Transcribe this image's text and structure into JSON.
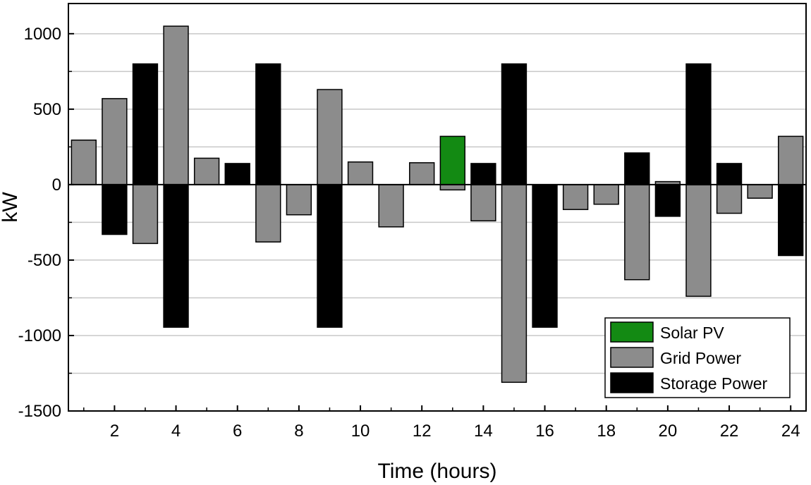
{
  "chart_data": {
    "type": "bar",
    "title": "",
    "xlabel": "Time (hours)",
    "ylabel": "kW",
    "xlim": [
      0.5,
      24.5
    ],
    "ylim": [
      -1500,
      1200
    ],
    "xticks": [
      2,
      4,
      6,
      8,
      10,
      12,
      14,
      16,
      18,
      20,
      22,
      24
    ],
    "yticks": [
      -1500,
      -1000,
      -500,
      0,
      500,
      1000
    ],
    "grid": "horizontal",
    "legend_position": "bottom-right",
    "series": [
      {
        "name": "Solar PV",
        "color": "#138a13",
        "points": [
          {
            "x": 13,
            "y": 320
          }
        ]
      },
      {
        "name": "Grid Power",
        "color": "#8c8c8c",
        "points": [
          {
            "x": 1,
            "y": 295
          },
          {
            "x": 2,
            "y": 570
          },
          {
            "x": 3,
            "y": -390
          },
          {
            "x": 4,
            "y": 1050
          },
          {
            "x": 5,
            "y": 175
          },
          {
            "x": 7,
            "y": -380
          },
          {
            "x": 8,
            "y": -200
          },
          {
            "x": 9,
            "y": 630
          },
          {
            "x": 10,
            "y": 150
          },
          {
            "x": 11,
            "y": -280
          },
          {
            "x": 12,
            "y": 145
          },
          {
            "x": 13,
            "y": -35
          },
          {
            "x": 14,
            "y": -240
          },
          {
            "x": 15,
            "y": -1310
          },
          {
            "x": 17,
            "y": -165
          },
          {
            "x": 18,
            "y": -130
          },
          {
            "x": 19,
            "y": -630
          },
          {
            "x": 20,
            "y": 20
          },
          {
            "x": 21,
            "y": -740
          },
          {
            "x": 22,
            "y": -190
          },
          {
            "x": 23,
            "y": -90
          },
          {
            "x": 24,
            "y": 320
          }
        ]
      },
      {
        "name": "Storage Power",
        "color": "#000000",
        "points": [
          {
            "x": 2,
            "y": -330
          },
          {
            "x": 3,
            "y": 800
          },
          {
            "x": 4,
            "y": -945
          },
          {
            "x": 6,
            "y": 140
          },
          {
            "x": 7,
            "y": 800
          },
          {
            "x": 9,
            "y": -945
          },
          {
            "x": 14,
            "y": 140
          },
          {
            "x": 15,
            "y": 800
          },
          {
            "x": 16,
            "y": -945
          },
          {
            "x": 19,
            "y": 210
          },
          {
            "x": 20,
            "y": -210
          },
          {
            "x": 21,
            "y": 800
          },
          {
            "x": 22,
            "y": 140
          },
          {
            "x": 24,
            "y": -470
          }
        ]
      }
    ]
  }
}
